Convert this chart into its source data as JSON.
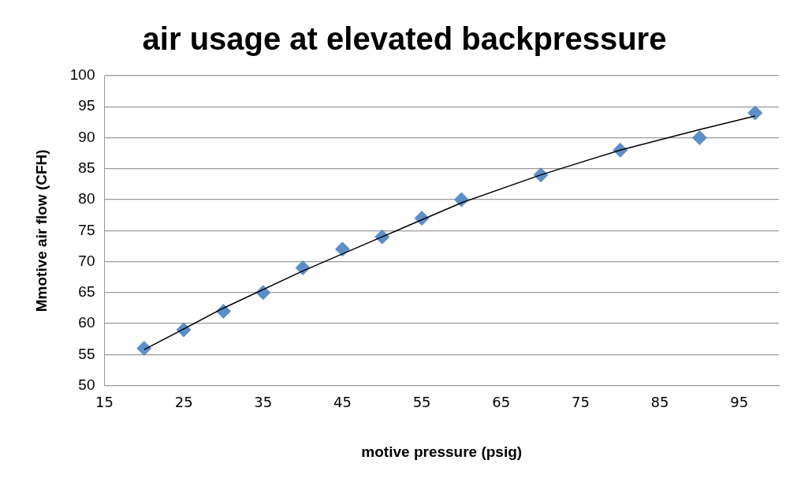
{
  "chart_data": {
    "type": "scatter",
    "title": "air usage at elevated backpressure",
    "xlabel": "motive pressure (psig)",
    "ylabel": "Mmotive air flow (CFH)",
    "xlim": [
      15,
      100
    ],
    "xticks": [
      15,
      25,
      35,
      45,
      55,
      65,
      75,
      85,
      95
    ],
    "ylim": [
      50,
      100
    ],
    "yticks": [
      50,
      55,
      60,
      65,
      70,
      75,
      80,
      85,
      90,
      95,
      100
    ],
    "grid": "y",
    "legend": false,
    "marker": "diamond",
    "series": [
      {
        "type": "scatter",
        "color": "#5b8fc9",
        "x": [
          20,
          25,
          30,
          35,
          40,
          45,
          50,
          55,
          60,
          70,
          80,
          90,
          97
        ],
        "values": [
          56,
          59,
          62,
          65,
          69,
          72,
          74,
          77,
          80,
          84,
          88,
          90,
          94
        ]
      },
      {
        "type": "line",
        "color": "#000000",
        "marker": "none",
        "x": [
          20,
          30,
          40,
          50,
          60,
          70,
          80,
          90,
          97
        ],
        "values": [
          55.8,
          62.5,
          68.5,
          74,
          79.5,
          84,
          88,
          91.3,
          93.5
        ]
      }
    ]
  }
}
